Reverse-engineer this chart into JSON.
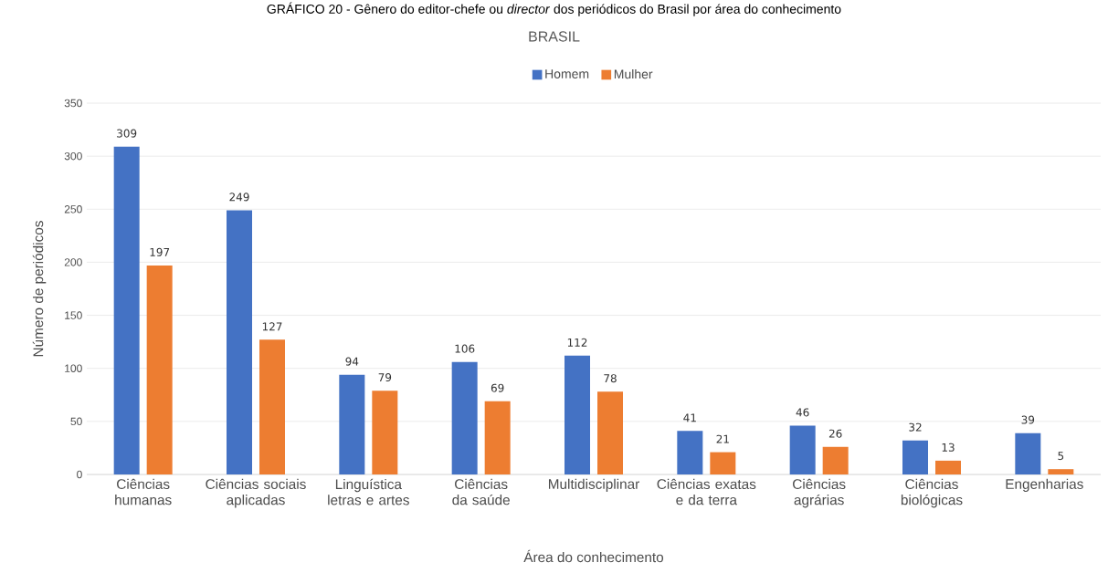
{
  "chart_data": {
    "type": "bar",
    "title": "BRASIL",
    "annotations": [
      "GRÁFICO 20 - Gênero do editor-chefe ou *director* dos periódicos do Brasil por área do conhecimento"
    ],
    "xlabel": "Área do conhecimento",
    "ylabel": "Número de periódicos",
    "categories": [
      "Ciências humanas",
      "Ciências sociais aplicadas",
      "Linguística letras e artes",
      "Ciências da saúde",
      "Multidisciplinar",
      "Ciências exatas e da terra",
      "Ciências agrárias",
      "Ciências biológicas",
      "Engenharias"
    ],
    "series": [
      {
        "name": "Homem",
        "color": "#4472c4",
        "values": [
          309,
          249,
          94,
          106,
          112,
          41,
          46,
          32,
          39
        ]
      },
      {
        "name": "Mulher",
        "color": "#ed7d31",
        "values": [
          197,
          127,
          79,
          69,
          78,
          21,
          26,
          13,
          5
        ]
      }
    ],
    "ylim": [
      0,
      350
    ],
    "yticks": [
      0,
      50,
      100,
      150,
      200,
      250,
      300,
      350
    ],
    "grid": "y",
    "legend": "top",
    "data_labels": true
  }
}
